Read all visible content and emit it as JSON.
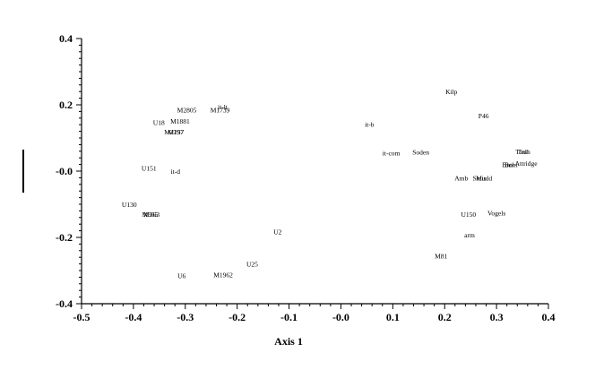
{
  "chart_data": {
    "type": "scatter",
    "title": "",
    "xlabel": "Axis 1",
    "ylabel": "",
    "xlim": [
      -0.5,
      0.4
    ],
    "ylim": [
      -0.4,
      0.4
    ],
    "xticks": [
      "-0.5",
      "-0.4",
      "-0.3",
      "-0.2",
      "-0.1",
      "-0.0",
      "0.1",
      "0.2",
      "0.3",
      "0.4"
    ],
    "yticks": [
      "-0.4",
      "-0.2",
      "-0.0",
      "0.2",
      "0.4"
    ],
    "grid": false,
    "points": [
      {
        "label": "Kilp",
        "x": 0.213,
        "y": 0.24
      },
      {
        "label": "P46",
        "x": 0.275,
        "y": 0.168
      },
      {
        "label": "it-b",
        "x": 0.055,
        "y": 0.142
      },
      {
        "label": "it-com",
        "x": 0.097,
        "y": 0.055
      },
      {
        "label": "Soden",
        "x": 0.154,
        "y": 0.058
      },
      {
        "label": "Tosh",
        "x": 0.349,
        "y": 0.06
      },
      {
        "label": "Tesh",
        "x": 0.353,
        "y": 0.06
      },
      {
        "label": "Attridge",
        "x": 0.357,
        "y": 0.025
      },
      {
        "label": "Bntl",
        "x": 0.322,
        "y": 0.02
      },
      {
        "label": "Bont",
        "x": 0.328,
        "y": 0.02
      },
      {
        "label": "Amb",
        "x": 0.232,
        "y": -0.02
      },
      {
        "label": "Sluis",
        "x": 0.267,
        "y": -0.02
      },
      {
        "label": "Mudd",
        "x": 0.276,
        "y": -0.02
      },
      {
        "label": "U150",
        "x": 0.246,
        "y": -0.13
      },
      {
        "label": "Vogels",
        "x": 0.3,
        "y": -0.125
      },
      {
        "label": "arm",
        "x": 0.248,
        "y": -0.192
      },
      {
        "label": "M81",
        "x": 0.193,
        "y": -0.255
      },
      {
        "label": "M2805",
        "x": -0.297,
        "y": 0.185
      },
      {
        "label": "M1739",
        "x": -0.233,
        "y": 0.185
      },
      {
        "label": "it-lt",
        "x": -0.228,
        "y": 0.195
      },
      {
        "label": "U18",
        "x": -0.351,
        "y": 0.147
      },
      {
        "label": "M1881",
        "x": -0.31,
        "y": 0.152
      },
      {
        "label": "M257",
        "x": -0.318,
        "y": 0.119
      },
      {
        "label": "M2197",
        "x": -0.322,
        "y": 0.119
      },
      {
        "label": "U151",
        "x": -0.37,
        "y": 0.01
      },
      {
        "label": "it-d",
        "x": -0.319,
        "y": 0.0
      },
      {
        "label": "U130",
        "x": -0.408,
        "y": -0.1
      },
      {
        "label": "M363",
        "x": -0.365,
        "y": -0.13
      },
      {
        "label": "M365",
        "x": -0.368,
        "y": -0.13
      },
      {
        "label": "U2",
        "x": -0.122,
        "y": -0.182
      },
      {
        "label": "U25",
        "x": -0.171,
        "y": -0.28
      },
      {
        "label": "U6",
        "x": -0.307,
        "y": -0.315
      },
      {
        "label": "M1962",
        "x": -0.227,
        "y": -0.312
      }
    ]
  }
}
